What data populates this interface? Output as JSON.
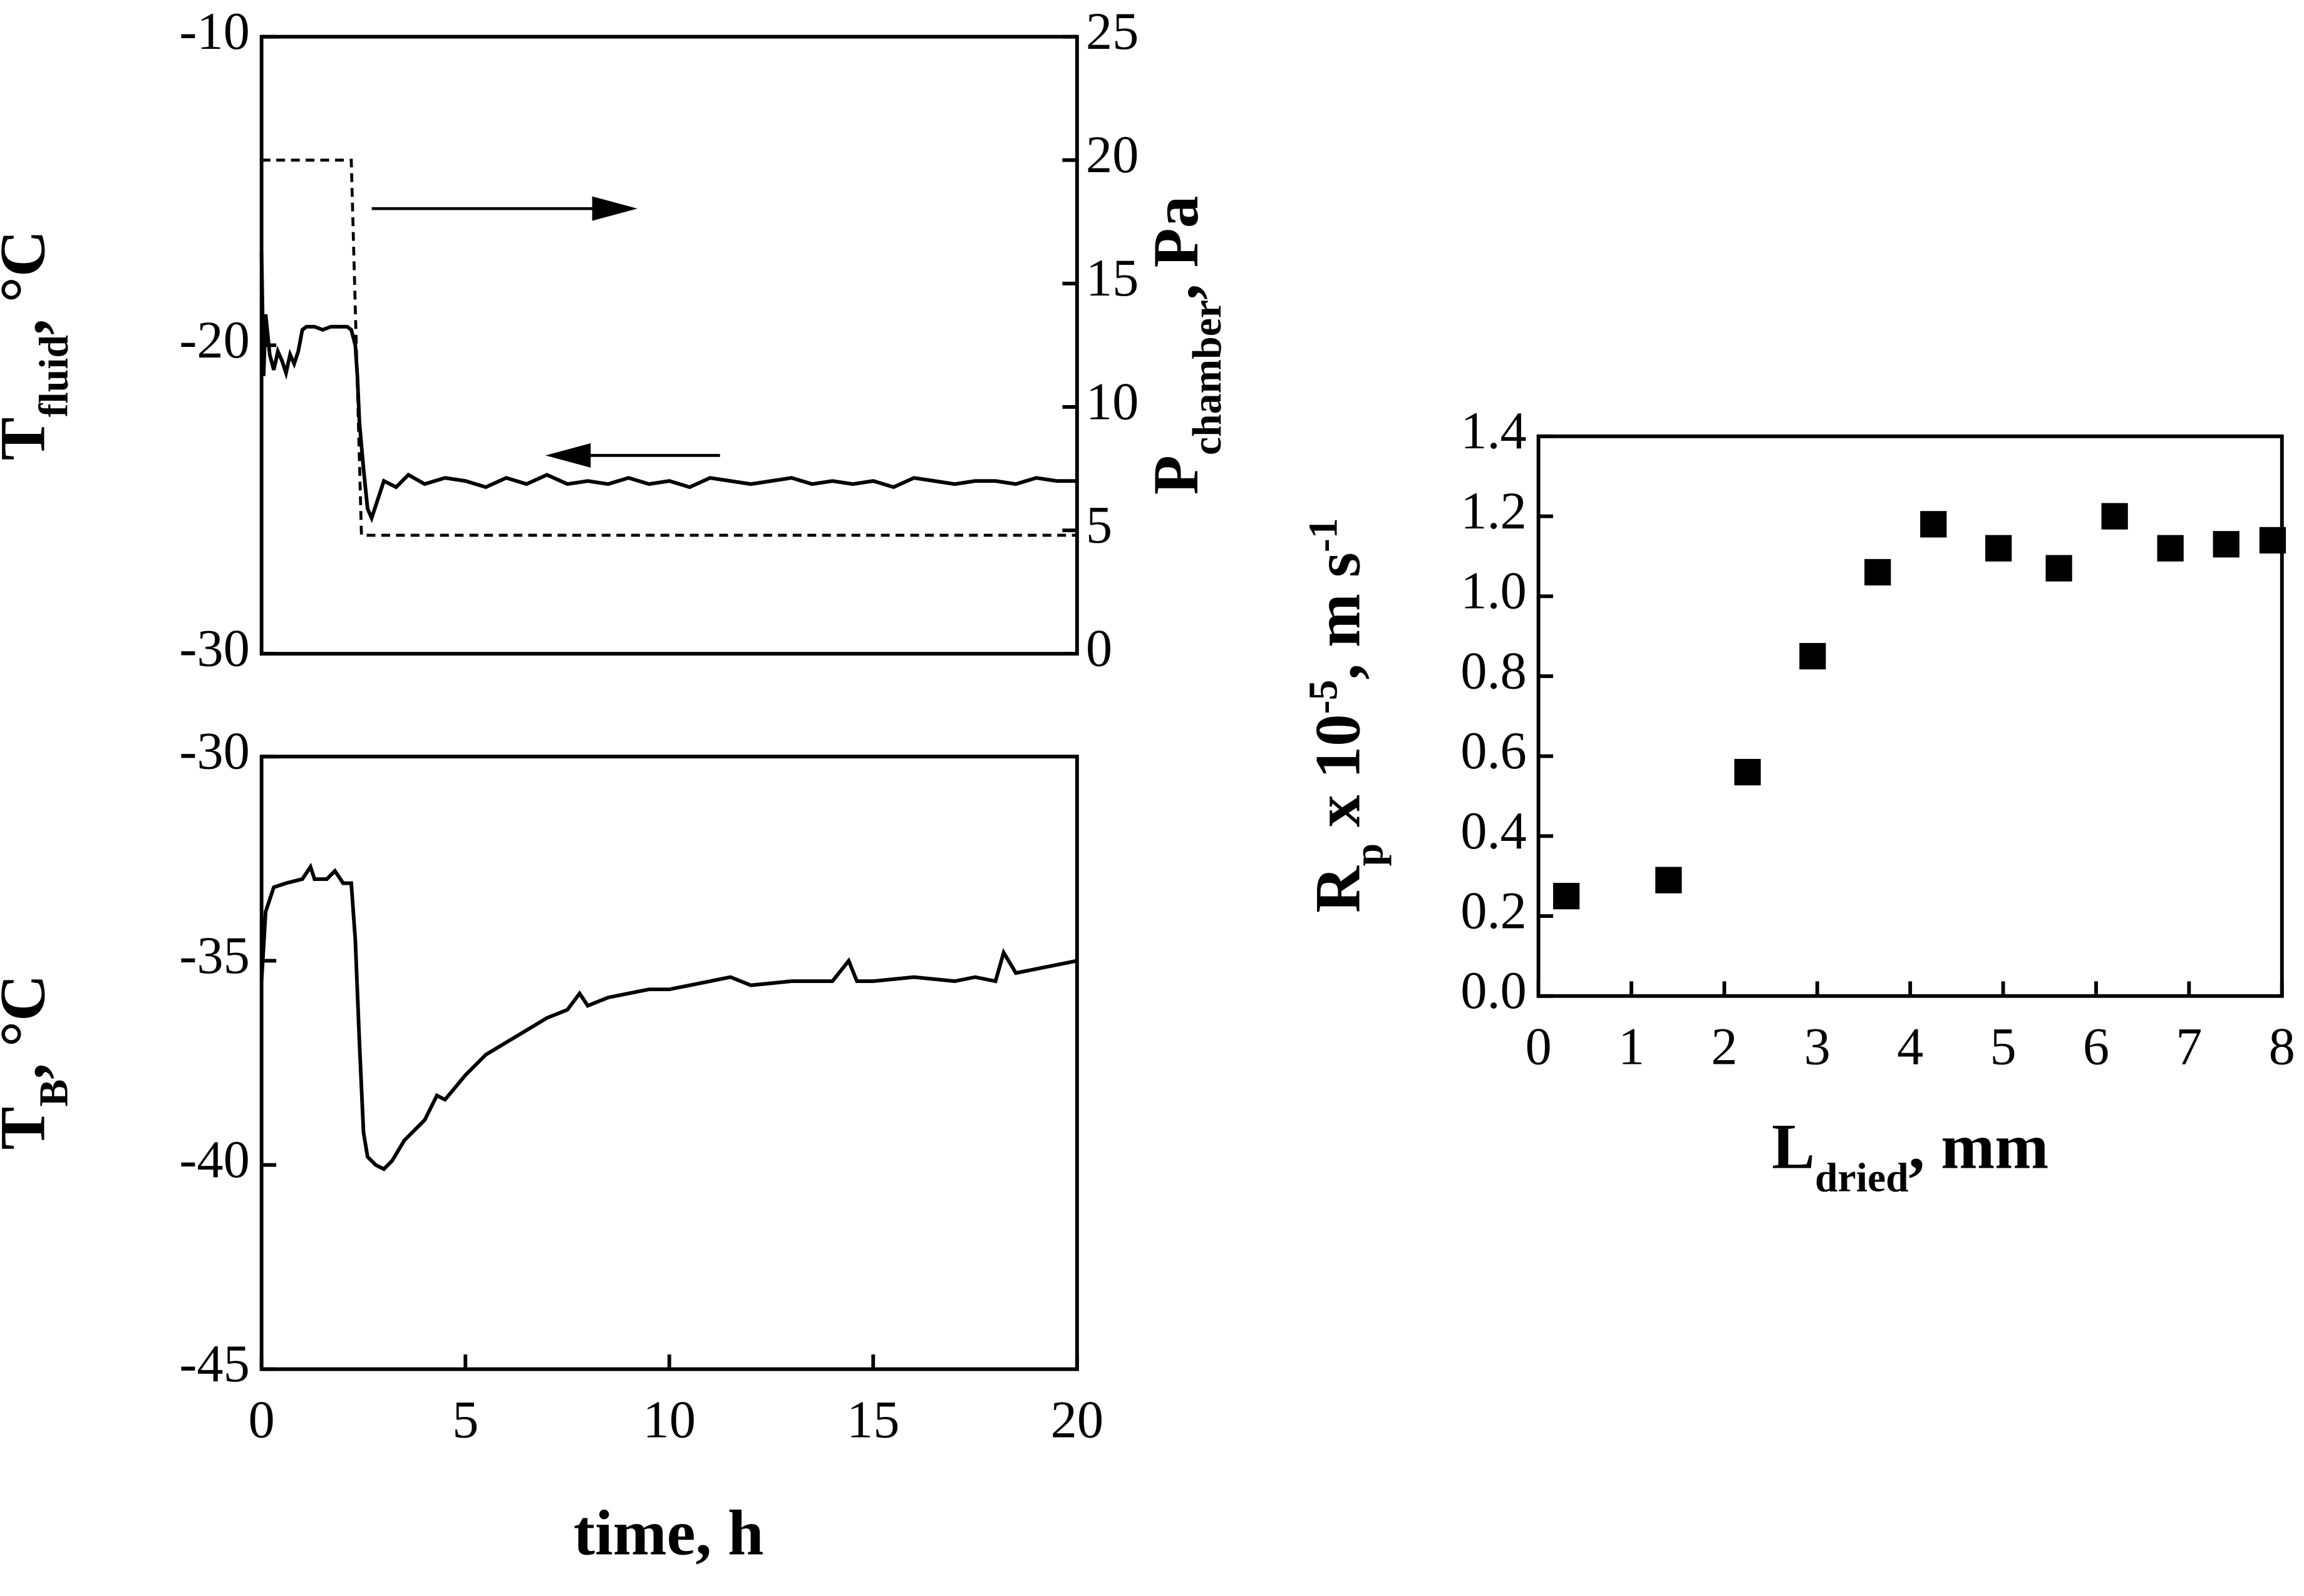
{
  "chart_data": [
    {
      "type": "line",
      "ylabel": [
        {
          "text": "T"
        },
        {
          "text": "fluid",
          "sub": true
        },
        {
          "text": ", °C"
        }
      ],
      "y2label": [
        {
          "text": "P"
        },
        {
          "text": "chamber",
          "sub": true
        },
        {
          "text": ", Pa"
        }
      ],
      "xlim": [
        0,
        20
      ],
      "ylim": [
        -30,
        -10
      ],
      "yticks": [
        -30,
        -20,
        -10
      ],
      "y2lim": [
        0,
        25
      ],
      "y2ticks": [
        0,
        5,
        10,
        15,
        20,
        25
      ],
      "series": [
        {
          "color": "#000000",
          "x": [
            0,
            0.05,
            0.1,
            0.2,
            0.3,
            0.4,
            0.5,
            0.6,
            0.7,
            0.8,
            0.9,
            1.0,
            1.1,
            1.3,
            1.5,
            1.7,
            1.9,
            2.1,
            2.2,
            2.3,
            2.35,
            2.4,
            2.5,
            2.6,
            2.7,
            2.8,
            2.9,
            3.0,
            3.3,
            3.6,
            4,
            4.5,
            5,
            5.5,
            6,
            6.5,
            7,
            7.5,
            8,
            8.5,
            9,
            9.5,
            10,
            10.5,
            11,
            11.5,
            12,
            12.5,
            13,
            13.5,
            14,
            14.5,
            15,
            15.5,
            16,
            16.5,
            17,
            17.5,
            18,
            18.5,
            19,
            19.5,
            20
          ],
          "values": [
            -17,
            -21,
            -19,
            -20.3,
            -20.8,
            -20.2,
            -20.5,
            -20.9,
            -20.3,
            -20.6,
            -20.2,
            -19.5,
            -19.4,
            -19.4,
            -19.5,
            -19.4,
            -19.4,
            -19.4,
            -19.5,
            -20.0,
            -21.0,
            -22.5,
            -24.0,
            -25.3,
            -25.6,
            -25.2,
            -24.8,
            -24.4,
            -24.6,
            -24.2,
            -24.5,
            -24.3,
            -24.4,
            -24.6,
            -24.3,
            -24.5,
            -24.2,
            -24.5,
            -24.4,
            -24.5,
            -24.3,
            -24.5,
            -24.4,
            -24.6,
            -24.3,
            -24.4,
            -24.5,
            -24.4,
            -24.3,
            -24.5,
            -24.4,
            -24.5,
            -24.4,
            -24.6,
            -24.3,
            -24.4,
            -24.5,
            -24.4,
            -24.4,
            -24.5,
            -24.3,
            -24.4,
            -24.4
          ]
        },
        {
          "color": "#000000",
          "dashed": true,
          "axis": "y2",
          "x": [
            0,
            2.2,
            2.45,
            20
          ],
          "values": [
            20,
            20,
            4.8,
            4.8
          ]
        }
      ]
    },
    {
      "type": "line",
      "ylabel": [
        {
          "text": "T"
        },
        {
          "text": "B",
          "sub": true
        },
        {
          "text": ", °C"
        }
      ],
      "xlabel": [
        {
          "text": "time, h"
        }
      ],
      "xlim": [
        0,
        20
      ],
      "xticks": [
        0,
        5,
        10,
        15,
        20
      ],
      "ylim": [
        -45,
        -30
      ],
      "yticks": [
        -45,
        -40,
        -35,
        -30
      ],
      "series": [
        {
          "color": "#000000",
          "x": [
            0,
            0.1,
            0.3,
            0.6,
            1.0,
            1.2,
            1.3,
            1.6,
            1.8,
            2.0,
            2.2,
            2.3,
            2.4,
            2.5,
            2.6,
            2.8,
            3.0,
            3.2,
            3.5,
            4,
            4.3,
            4.5,
            5,
            5.5,
            6,
            6.5,
            7,
            7.5,
            7.8,
            8,
            8.5,
            9,
            9.5,
            10,
            10.5,
            11,
            11.5,
            12,
            13,
            14,
            14.4,
            14.6,
            15,
            16,
            17,
            17.5,
            18,
            18.2,
            18.5,
            19,
            19.5,
            20
          ],
          "values": [
            -35.5,
            -33.8,
            -33.2,
            -33.1,
            -33.0,
            -32.7,
            -33.0,
            -33.0,
            -32.8,
            -33.1,
            -33.1,
            -34.5,
            -37.0,
            -39.2,
            -39.8,
            -40.0,
            -40.1,
            -39.9,
            -39.4,
            -38.9,
            -38.3,
            -38.4,
            -37.8,
            -37.3,
            -37.0,
            -36.7,
            -36.4,
            -36.2,
            -35.8,
            -36.1,
            -35.9,
            -35.8,
            -35.7,
            -35.7,
            -35.6,
            -35.5,
            -35.4,
            -35.6,
            -35.5,
            -35.5,
            -35.0,
            -35.5,
            -35.5,
            -35.4,
            -35.5,
            -35.4,
            -35.5,
            -34.8,
            -35.3,
            -35.2,
            -35.1,
            -35.0
          ]
        }
      ]
    },
    {
      "type": "scatter",
      "ylabel": [
        {
          "text": "R"
        },
        {
          "text": "p",
          "sub": true
        },
        {
          "text": " x 10"
        },
        {
          "text": "-5",
          "sup": true
        },
        {
          "text": ", m s"
        },
        {
          "text": "-1",
          "sup": true
        }
      ],
      "xlabel": [
        {
          "text": "L"
        },
        {
          "text": "dried",
          "sub": true
        },
        {
          "text": ", mm"
        }
      ],
      "xlim": [
        0,
        8
      ],
      "xticks": [
        0,
        1,
        2,
        3,
        4,
        5,
        6,
        7,
        8
      ],
      "ylim": [
        0,
        1.4
      ],
      "yticks": [
        {
          "value": 0,
          "label": "0.0"
        },
        0.2,
        0.4,
        0.6,
        0.8,
        {
          "value": 1,
          "label": "1.0"
        },
        1.2,
        1.4
      ],
      "color": "#000000",
      "x": [
        0.3,
        1.4,
        2.25,
        2.95,
        3.65,
        4.25,
        4.95,
        5.6,
        6.2,
        6.8,
        7.4,
        7.9
      ],
      "values": [
        0.25,
        0.29,
        0.56,
        0.85,
        1.06,
        1.18,
        1.12,
        1.07,
        1.2,
        1.12,
        1.13,
        1.14
      ]
    }
  ]
}
